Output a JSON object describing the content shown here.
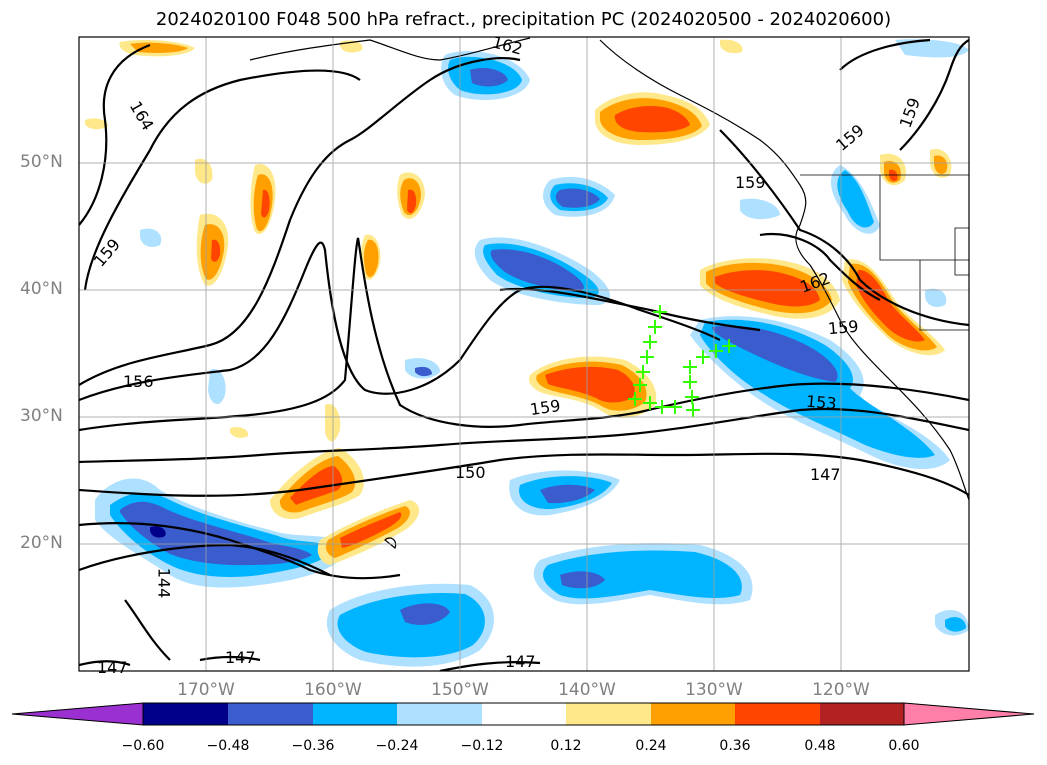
{
  "title": "2024020100 F048 500 hPa refract., precipitation PC (2024020500 - 2024020600)",
  "lat_labels": [
    "50°N",
    "40°N",
    "30°N",
    "20°N"
  ],
  "lon_labels": [
    "170°W",
    "160°W",
    "150°W",
    "140°W",
    "130°W",
    "120°W"
  ],
  "contour_labels": [
    "162",
    "164",
    "159",
    "159",
    "159",
    "159",
    "162",
    "159",
    "156",
    "159",
    "153",
    "150",
    "147",
    "144",
    "147",
    "147",
    "147"
  ],
  "colorbar": {
    "tick_labels": [
      "−0.60",
      "−0.48",
      "−0.36",
      "−0.24",
      "−0.12",
      "0.12",
      "0.24",
      "0.36",
      "0.48",
      "0.60"
    ],
    "colors": [
      "#9b30d0",
      "#00008b",
      "#3a5ccc",
      "#00b4ff",
      "#aee0ff",
      "#ffffff",
      "#ffe88a",
      "#ffa000",
      "#ff4500",
      "#b22222",
      "#ff7fa8"
    ]
  },
  "markers": {
    "symbol": "+",
    "color": "#33ff00"
  }
}
